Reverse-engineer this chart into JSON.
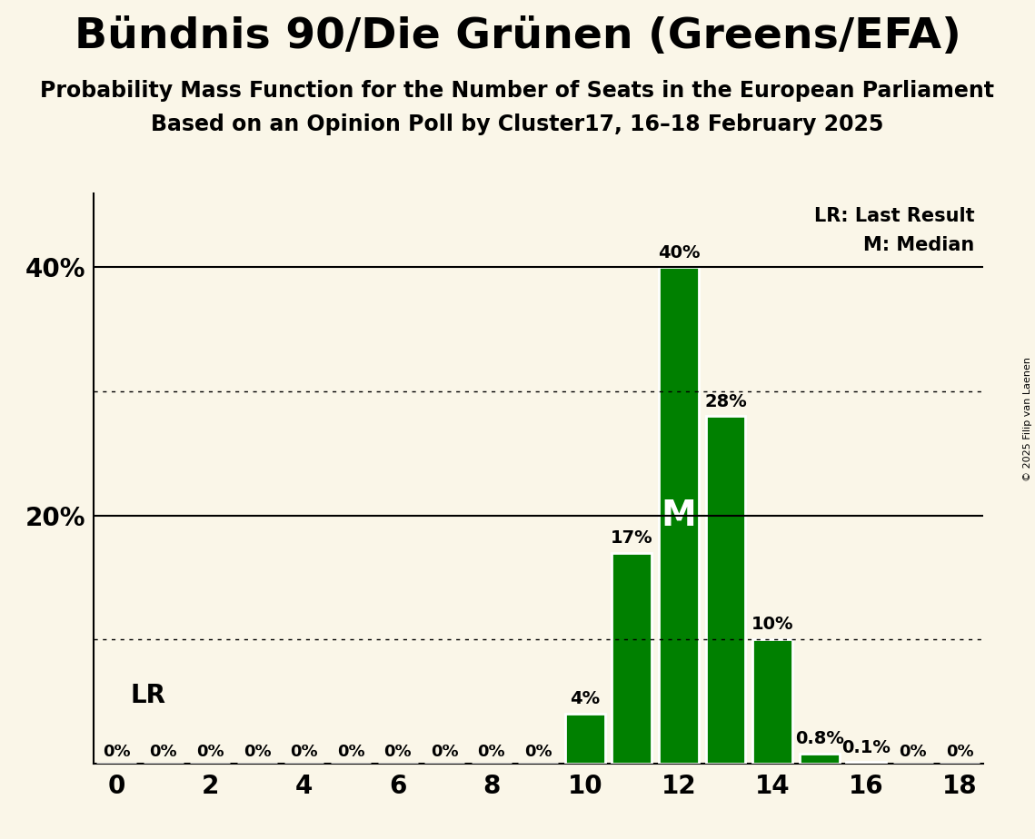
{
  "title": "Bündnis 90/Die Grünen (Greens/EFA)",
  "subtitle1": "Probability Mass Function for the Number of Seats in the European Parliament",
  "subtitle2": "Based on an Opinion Poll by Cluster17, 16–18 February 2025",
  "copyright": "© 2025 Filip van Laenen",
  "seats": [
    0,
    1,
    2,
    3,
    4,
    5,
    6,
    7,
    8,
    9,
    10,
    11,
    12,
    13,
    14,
    15,
    16,
    17,
    18
  ],
  "probabilities": [
    0,
    0,
    0,
    0,
    0,
    0,
    0,
    0,
    0,
    0,
    4,
    17,
    40,
    28,
    10,
    0.8,
    0.1,
    0,
    0
  ],
  "bar_color": "#008000",
  "background_color": "#faf6e8",
  "median_seat": 12,
  "lr_seat": 1,
  "solid_lines": [
    20,
    40
  ],
  "dotted_lines": [
    10,
    30
  ],
  "xlim": [
    -0.5,
    18.5
  ],
  "ylim": [
    0,
    46
  ],
  "bar_width": 0.85,
  "title_fontsize": 34,
  "subtitle_fontsize": 17,
  "label_fontsize": 14,
  "axis_fontsize": 20,
  "legend_fontsize": 15,
  "lr_fontsize": 20,
  "median_fontsize": 28
}
